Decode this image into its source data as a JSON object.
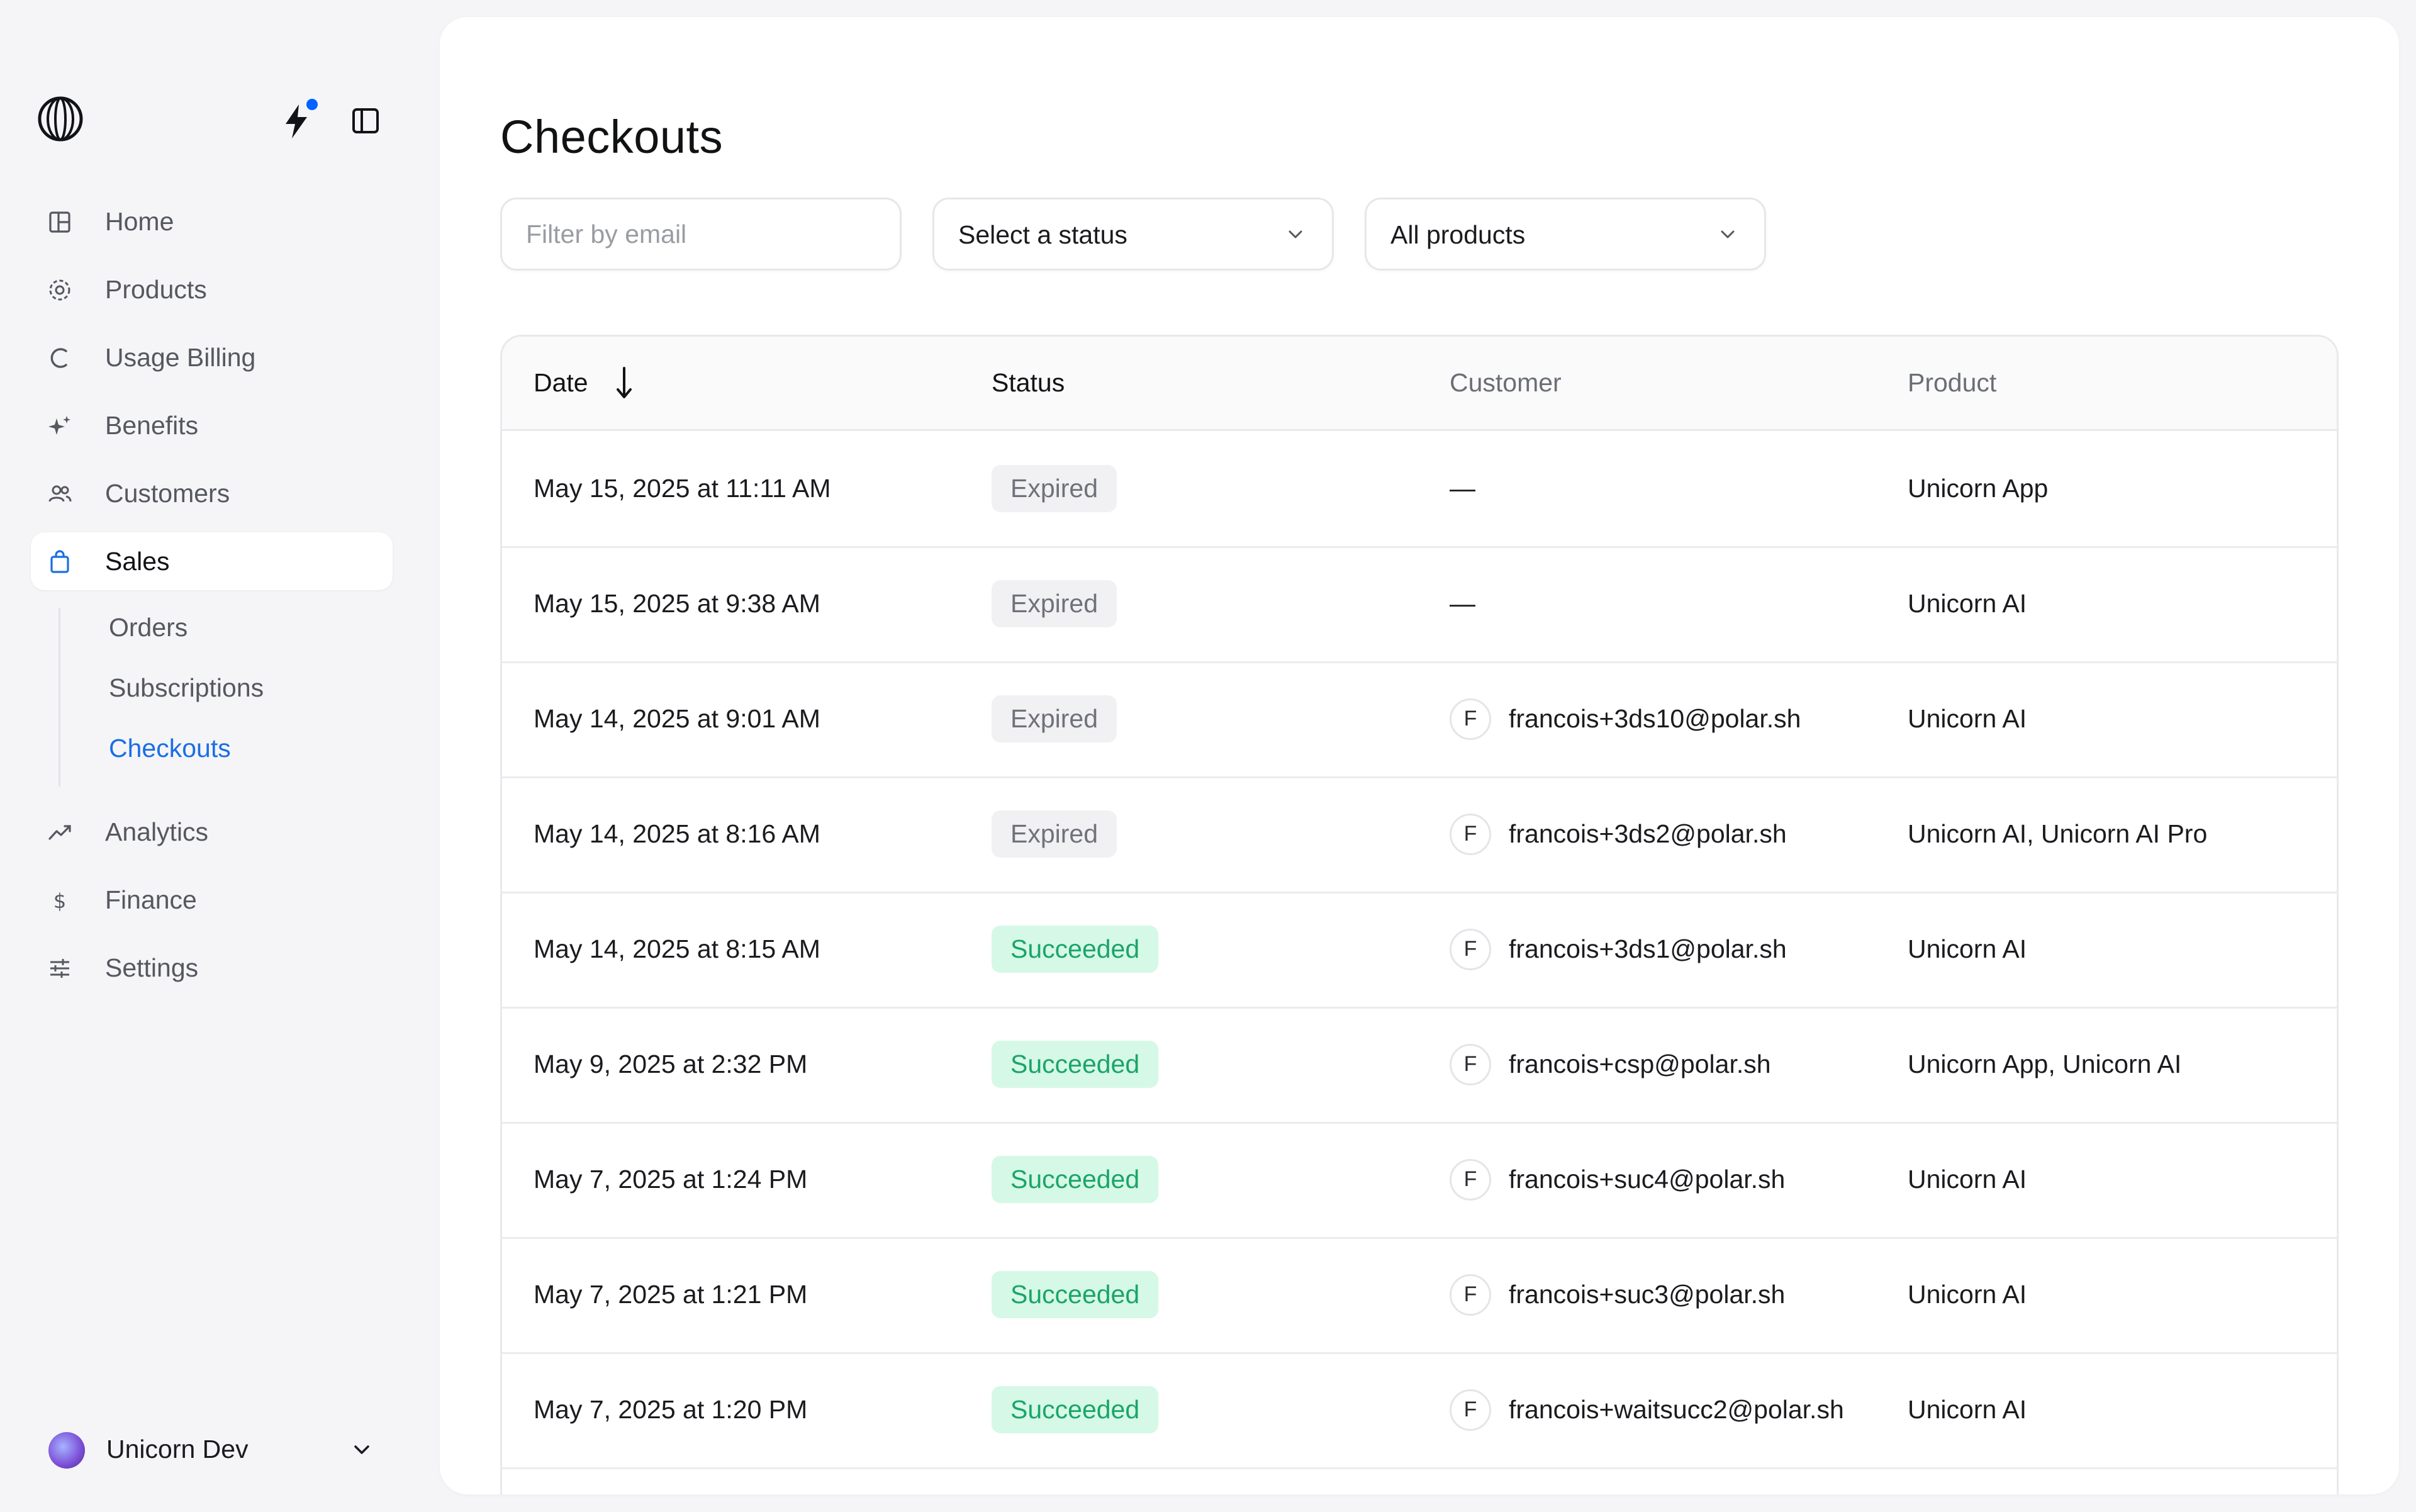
{
  "sidebar": {
    "nav": [
      {
        "label": "Home",
        "icon": "home-icon"
      },
      {
        "label": "Products",
        "icon": "products-icon"
      },
      {
        "label": "Usage Billing",
        "icon": "usage-billing-icon"
      },
      {
        "label": "Benefits",
        "icon": "benefits-icon"
      },
      {
        "label": "Customers",
        "icon": "customers-icon"
      },
      {
        "label": "Sales",
        "icon": "sales-bag-icon",
        "active": true
      }
    ],
    "sales_sub": [
      {
        "label": "Orders"
      },
      {
        "label": "Subscriptions"
      },
      {
        "label": "Checkouts",
        "active": true
      }
    ],
    "nav_bottom": [
      {
        "label": "Analytics",
        "icon": "analytics-icon"
      },
      {
        "label": "Finance",
        "icon": "finance-icon"
      },
      {
        "label": "Settings",
        "icon": "settings-icon"
      }
    ],
    "account": {
      "name": "Unicorn Dev"
    }
  },
  "page": {
    "title": "Checkouts",
    "filters": {
      "email_placeholder": "Filter by email",
      "status": "Select a status",
      "products": "All products"
    }
  },
  "table": {
    "headers": {
      "date": "Date",
      "status": "Status",
      "customer": "Customer",
      "product": "Product"
    },
    "rows": [
      {
        "date": "May 15, 2025 at 11:11 AM",
        "status": "Expired",
        "customer": "—",
        "initial": "",
        "product": "Unicorn App"
      },
      {
        "date": "May 15, 2025 at 9:38 AM",
        "status": "Expired",
        "customer": "—",
        "initial": "",
        "product": "Unicorn AI"
      },
      {
        "date": "May 14, 2025 at 9:01 AM",
        "status": "Expired",
        "customer": "francois+3ds10@polar.sh",
        "initial": "F",
        "product": "Unicorn AI"
      },
      {
        "date": "May 14, 2025 at 8:16 AM",
        "status": "Expired",
        "customer": "francois+3ds2@polar.sh",
        "initial": "F",
        "product": "Unicorn AI, Unicorn AI Pro"
      },
      {
        "date": "May 14, 2025 at 8:15 AM",
        "status": "Succeeded",
        "customer": "francois+3ds1@polar.sh",
        "initial": "F",
        "product": "Unicorn AI"
      },
      {
        "date": "May 9, 2025 at 2:32 PM",
        "status": "Succeeded",
        "customer": "francois+csp@polar.sh",
        "initial": "F",
        "product": "Unicorn App, Unicorn AI"
      },
      {
        "date": "May 7, 2025 at 1:24 PM",
        "status": "Succeeded",
        "customer": "francois+suc4@polar.sh",
        "initial": "F",
        "product": "Unicorn AI"
      },
      {
        "date": "May 7, 2025 at 1:21 PM",
        "status": "Succeeded",
        "customer": "francois+suc3@polar.sh",
        "initial": "F",
        "product": "Unicorn AI"
      },
      {
        "date": "May 7, 2025 at 1:20 PM",
        "status": "Succeeded",
        "customer": "francois+waitsucc2@polar.sh",
        "initial": "F",
        "product": "Unicorn AI"
      }
    ]
  },
  "colors": {
    "accent": "#1a6ee6",
    "success_bg": "#d6f8e7",
    "success_text": "#1aa568",
    "expired_bg": "#f1f1f3"
  }
}
